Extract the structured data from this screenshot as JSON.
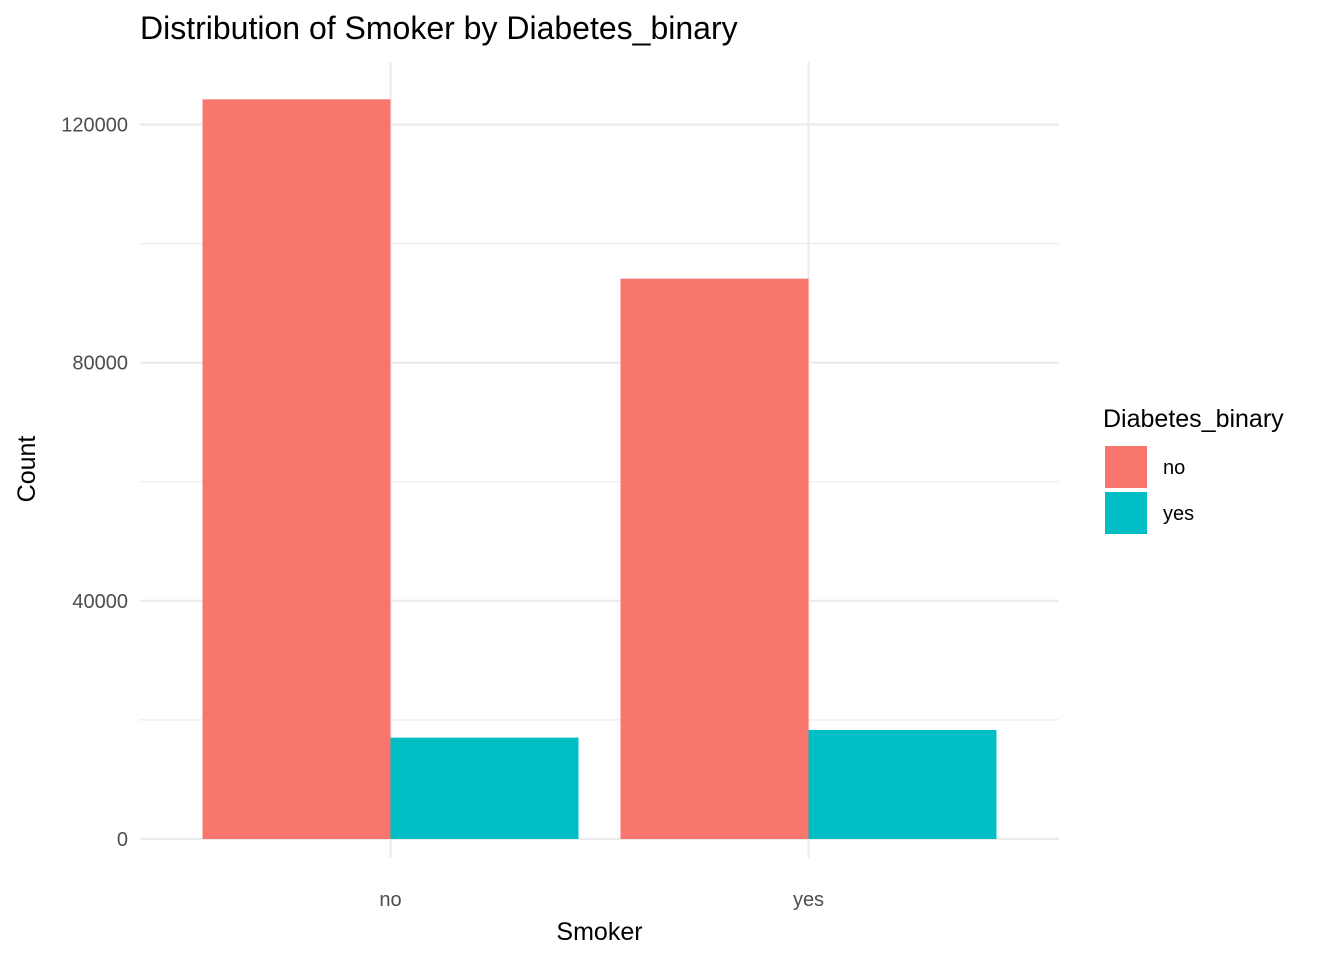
{
  "chart_data": {
    "type": "bar",
    "title": "Distribution of Smoker by Diabetes_binary",
    "xlabel": "Smoker",
    "ylabel": "Count",
    "categories": [
      "no",
      "yes"
    ],
    "series": [
      {
        "name": "no",
        "color": "#F8766D",
        "values": [
          124228,
          94106
        ]
      },
      {
        "name": "yes",
        "color": "#00BFC4",
        "values": [
          17029,
          18317
        ]
      }
    ],
    "ylim": [
      0,
      130000
    ],
    "yticks": [
      0,
      40000,
      80000,
      120000
    ],
    "yticks_labels": [
      "0",
      "40000",
      "80000",
      "120000"
    ],
    "legend_title": "Diabetes_binary",
    "legend_position": "right",
    "grid": true
  }
}
